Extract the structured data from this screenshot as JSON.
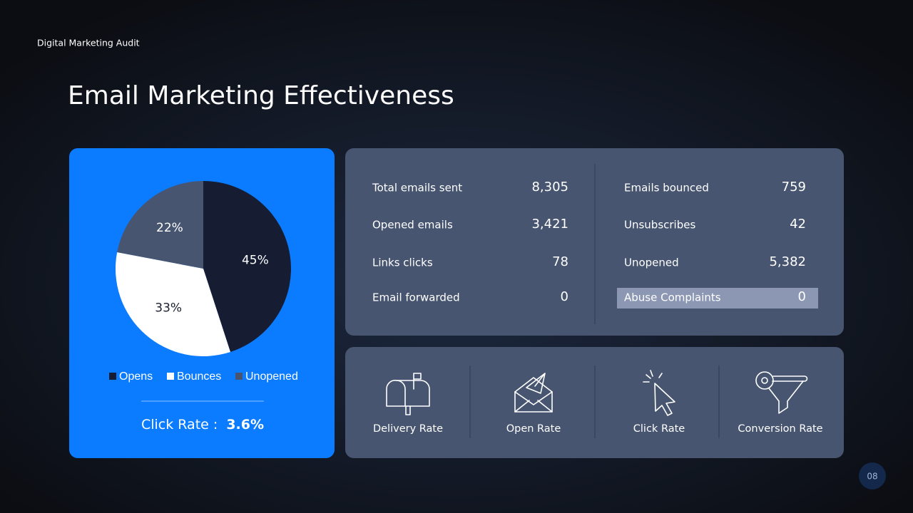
{
  "header": {
    "section": "Digital Marketing Audit",
    "title": "Email Marketing Effectiveness",
    "page_number": "08"
  },
  "chart_data": {
    "type": "pie",
    "series": [
      {
        "name": "Opens",
        "color": "#161d33",
        "values": [
          45
        ],
        "value_labels": [
          "45%"
        ]
      },
      {
        "name": "Bounces",
        "color": "#ffffff",
        "values": [
          33
        ],
        "value_labels": [
          "33%"
        ]
      },
      {
        "name": "Unopened",
        "color": "#475570",
        "values": [
          22
        ],
        "value_labels": [
          "22%"
        ]
      }
    ],
    "legend": "bottom"
  },
  "click_rate": {
    "label": "Click Rate :",
    "value": "3.6%"
  },
  "stats": {
    "left": [
      [
        "Total emails sent",
        "8,305"
      ],
      [
        "Opened emails",
        "3,421"
      ],
      [
        "Links clicks",
        "78"
      ],
      [
        "Email forwarded",
        "0"
      ]
    ],
    "right": [
      [
        "Emails bounced",
        "759"
      ],
      [
        "Unsubscribes",
        "42"
      ],
      [
        "Unopened",
        "5,382"
      ],
      [
        "Abuse Complaints",
        "0"
      ]
    ]
  },
  "metrics": [
    "Delivery Rate",
    "Open Rate",
    "Click Rate",
    "Conversion Rate"
  ]
}
